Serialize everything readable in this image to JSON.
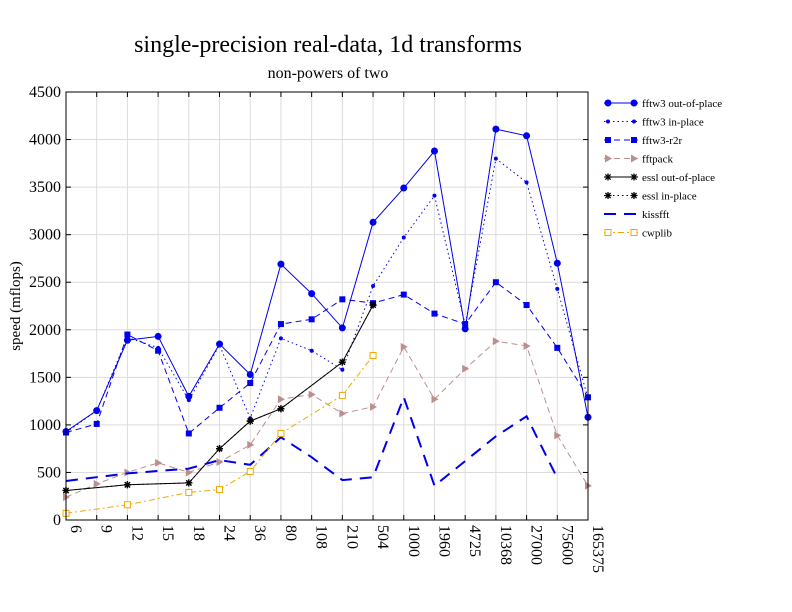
{
  "chart_data": {
    "type": "line",
    "title": "single-precision real-data, 1d transforms",
    "subtitle": "non-powers of two",
    "xlabel": "",
    "ylabel": "speed (mflops)",
    "ylim": [
      0,
      4500
    ],
    "yticks": [
      "0",
      "500",
      "1000",
      "1500",
      "2000",
      "2500",
      "3000",
      "3500",
      "4000",
      "4500"
    ],
    "categories": [
      "6",
      "9",
      "12",
      "15",
      "18",
      "24",
      "36",
      "80",
      "108",
      "210",
      "504",
      "1000",
      "1960",
      "4725",
      "10368",
      "27000",
      "75600",
      "165375"
    ],
    "grid": true,
    "legend_position": "right",
    "series": [
      {
        "name": "fftw3 out-of-place",
        "color": "#0000ee",
        "dash": "",
        "marker": "circle",
        "values": [
          930,
          1150,
          1890,
          1930,
          1300,
          1850,
          1530,
          2690,
          2380,
          2020,
          3130,
          3490,
          3880,
          2010,
          4110,
          4040,
          2700,
          1080
        ]
      },
      {
        "name": "fftw3 in-place",
        "color": "#0000ee",
        "dash": "1.5,3",
        "marker": "smalldot",
        "values": [
          920,
          1150,
          1920,
          1810,
          1260,
          1840,
          1070,
          1910,
          1780,
          1580,
          2460,
          2970,
          3410,
          2050,
          3800,
          3550,
          2430,
          1280
        ]
      },
      {
        "name": "fftw3-r2r",
        "color": "#0000ee",
        "dash": "6,4",
        "marker": "square",
        "values": [
          920,
          1010,
          1950,
          1780,
          910,
          1180,
          1440,
          2060,
          2110,
          2320,
          2280,
          2370,
          2170,
          2060,
          2500,
          2260,
          1810,
          1290
        ]
      },
      {
        "name": "fftpack",
        "color": "#bc8f8f",
        "dash": "6,4",
        "marker": "triangle",
        "values": [
          240,
          380,
          500,
          600,
          500,
          610,
          790,
          1270,
          1320,
          1120,
          1190,
          1820,
          1270,
          1590,
          1880,
          1830,
          890,
          360
        ]
      },
      {
        "name": "essl out-of-place",
        "color": "#000000",
        "dash": "",
        "marker": "star",
        "values": [
          310,
          null,
          370,
          null,
          390,
          750,
          1040,
          1170,
          null,
          1660,
          2260,
          null,
          null,
          null,
          null,
          null,
          null,
          null
        ]
      },
      {
        "name": "essl in-place",
        "color": "#000000",
        "dash": "1.5,3",
        "marker": "star",
        "values": [
          310,
          null,
          370,
          null,
          390,
          750,
          1040,
          1170,
          null,
          1660,
          2260,
          null,
          null,
          null,
          null,
          null,
          null,
          null
        ]
      },
      {
        "name": "kissfft",
        "color": "#0000ee",
        "dash": "12,8",
        "marker": "none",
        "values": [
          410,
          null,
          490,
          null,
          540,
          630,
          580,
          870,
          660,
          420,
          450,
          1290,
          360,
          null,
          880,
          1090,
          440,
          null
        ]
      },
      {
        "name": "cwplib",
        "color": "#f0a800",
        "dash": "6,3,2,3",
        "marker": "opensquare",
        "values": [
          70,
          null,
          160,
          null,
          290,
          320,
          510,
          910,
          null,
          1310,
          1730,
          null,
          null,
          null,
          null,
          null,
          null,
          null
        ]
      }
    ]
  }
}
